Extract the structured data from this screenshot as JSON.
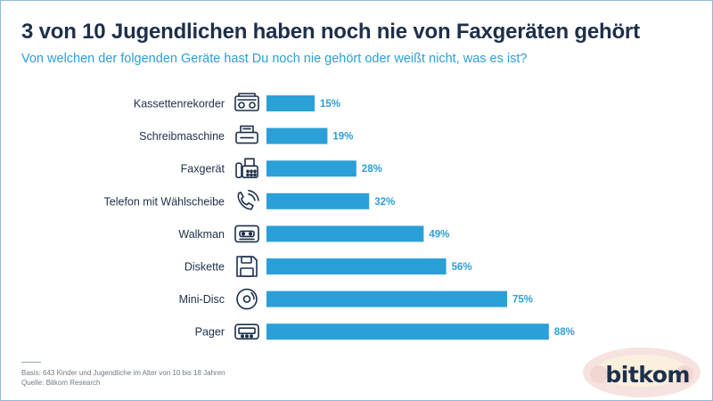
{
  "header": {
    "title": "3 von 10 Jugendlichen haben noch nie von Faxgeräten gehört",
    "subtitle": "Von welchen der folgenden Geräte hast Du noch nie gehört oder weißt nicht, was es ist?"
  },
  "chart_data": {
    "type": "bar",
    "orientation": "horizontal",
    "categories": [
      "Kassettenrekorder",
      "Schreibmaschine",
      "Faxgerät",
      "Telefon mit Wählscheibe",
      "Walkman",
      "Diskette",
      "Mini-Disc",
      "Pager"
    ],
    "values": [
      15,
      19,
      28,
      32,
      49,
      56,
      75,
      88
    ],
    "value_labels": [
      "15%",
      "19%",
      "28%",
      "32%",
      "49%",
      "56%",
      "75%",
      "88%"
    ],
    "icons": [
      "cassette-recorder-icon",
      "typewriter-icon",
      "fax-icon",
      "rotary-phone-icon",
      "walkman-icon",
      "floppy-disk-icon",
      "mini-disc-icon",
      "pager-icon"
    ],
    "xlim": [
      0,
      100
    ],
    "grid": false,
    "bar_color": "#2b9fd8"
  },
  "footer": {
    "basis": "Basis: 643 Kinder und Jugendliche im Alter von 10 bis 18 Jahren",
    "source": "Quelle: Bitkom Research",
    "brand": "bitkom"
  },
  "colors": {
    "title": "#1d2f4a",
    "accent": "#2b9fd8",
    "frame": "#8fb9d6"
  }
}
